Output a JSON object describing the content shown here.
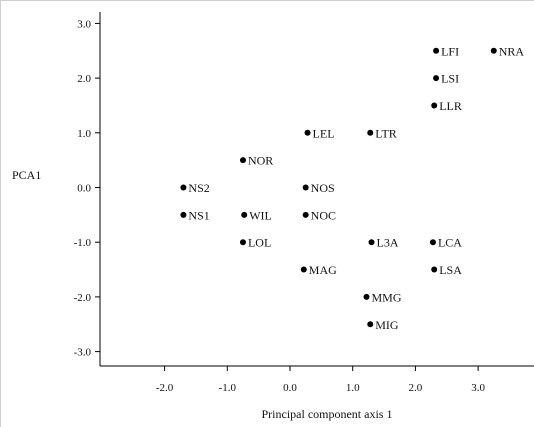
{
  "chart_data": {
    "type": "scatter",
    "title": "",
    "xlabel": "Principal component axis 1",
    "ylabel": "PCA1",
    "xlim": [
      -3.0,
      3.9
    ],
    "ylim": [
      -3.3,
      3.2
    ],
    "x_ticks": [
      -2.0,
      -1.0,
      0.0,
      1.0,
      2.0,
      3.0
    ],
    "x_tick_labels": [
      "-2.0",
      "-1.0",
      "0.0",
      "1.0",
      "2.0",
      "3.0"
    ],
    "y_ticks": [
      3.0,
      2.0,
      1.0,
      0.0,
      -1.0,
      -2.0,
      -3.0
    ],
    "y_tick_labels": [
      "3.0",
      "2.0",
      "1.0",
      "0.0",
      "-1.0",
      "-2.0",
      "-3.0"
    ],
    "grid": false,
    "legend": "none",
    "marker_color": "#000000",
    "points": [
      {
        "label": "LFI",
        "x": 2.33,
        "y": 2.5
      },
      {
        "label": "NRA",
        "x": 3.25,
        "y": 2.5
      },
      {
        "label": "LSI",
        "x": 2.33,
        "y": 2.0
      },
      {
        "label": "LLR",
        "x": 2.3,
        "y": 1.5
      },
      {
        "label": "LEL",
        "x": 0.28,
        "y": 1.0
      },
      {
        "label": "LTR",
        "x": 1.28,
        "y": 1.0
      },
      {
        "label": "NOR",
        "x": -0.75,
        "y": 0.5
      },
      {
        "label": "NS2",
        "x": -1.7,
        "y": 0.0
      },
      {
        "label": "NOS",
        "x": 0.25,
        "y": 0.0
      },
      {
        "label": "NS1",
        "x": -1.7,
        "y": -0.5
      },
      {
        "label": "WIL",
        "x": -0.73,
        "y": -0.5
      },
      {
        "label": "NOC",
        "x": 0.25,
        "y": -0.5
      },
      {
        "label": "LOL",
        "x": -0.75,
        "y": -1.0
      },
      {
        "label": "L3A",
        "x": 1.3,
        "y": -1.0
      },
      {
        "label": "LCA",
        "x": 2.28,
        "y": -1.0
      },
      {
        "label": "MAG",
        "x": 0.22,
        "y": -1.5
      },
      {
        "label": "LSA",
        "x": 2.3,
        "y": -1.5
      },
      {
        "label": "MMG",
        "x": 1.22,
        "y": -2.0
      },
      {
        "label": "MIG",
        "x": 1.28,
        "y": -2.5
      }
    ]
  }
}
